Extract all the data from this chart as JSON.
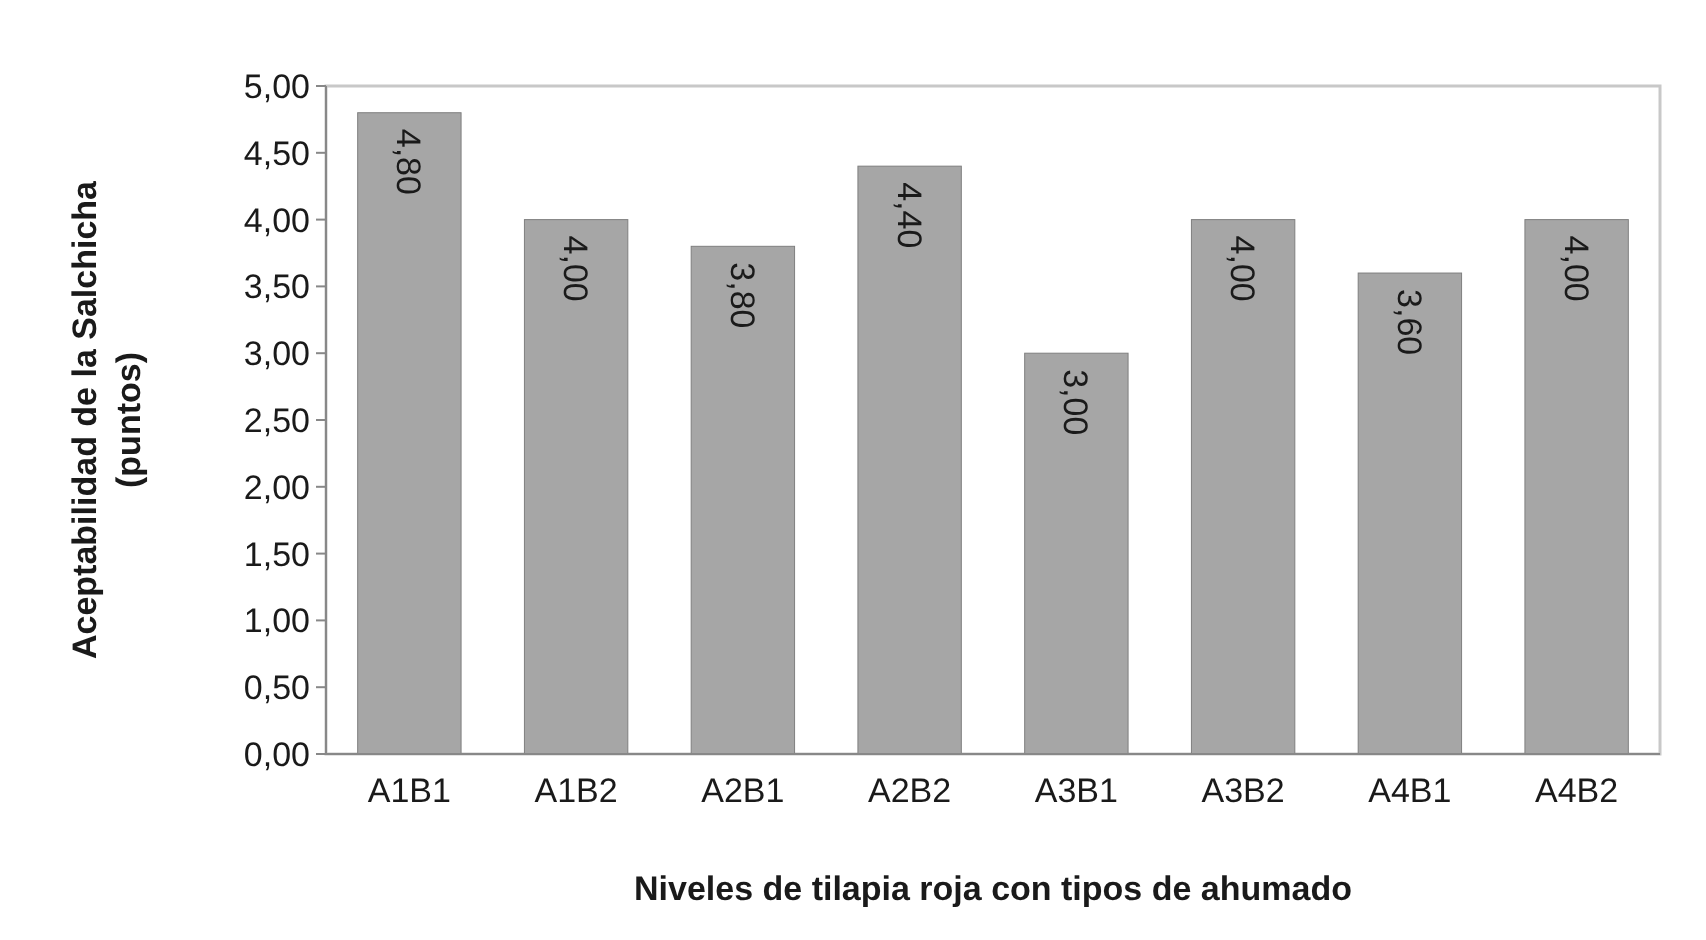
{
  "chart_data": {
    "type": "bar",
    "xlabel": "Niveles de tilapia roja con tipos de ahumado",
    "ylabel": "Aceptabilidad de la Salchicha (puntos)",
    "categories": [
      "A1B1",
      "A1B2",
      "A2B1",
      "A2B2",
      "A3B1",
      "A3B2",
      "A4B1",
      "A4B2"
    ],
    "values": [
      4.8,
      4.0,
      3.8,
      4.4,
      3.0,
      4.0,
      3.6,
      4.0
    ],
    "value_labels": [
      "4,80",
      "4,00",
      "3,80",
      "4,40",
      "3,00",
      "4,00",
      "3,60",
      "4,00"
    ],
    "color": "#a6a6a6",
    "ylim": [
      0,
      5
    ],
    "yticks": [
      {
        "value": 0,
        "label": "0,00"
      },
      {
        "value": 0.5,
        "label": "0,50"
      },
      {
        "value": 1,
        "label": "1,00"
      },
      {
        "value": 1.5,
        "label": "1,50"
      },
      {
        "value": 2,
        "label": "2,00"
      },
      {
        "value": 2.5,
        "label": "2,50"
      },
      {
        "value": 3,
        "label": "3,00"
      },
      {
        "value": 3.5,
        "label": "3,50"
      },
      {
        "value": 4,
        "label": "4,00"
      },
      {
        "value": 4.5,
        "label": "4,50"
      },
      {
        "value": 5,
        "label": "5,00"
      }
    ]
  }
}
